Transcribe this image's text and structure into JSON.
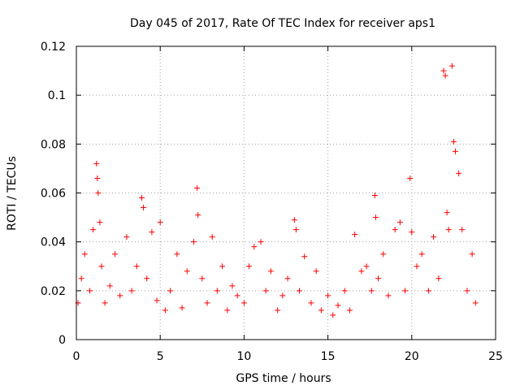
{
  "chart_data": {
    "type": "scatter",
    "title": "Day 045 of 2017, Rate Of TEC Index for receiver aps1",
    "xlabel": "GPS time / hours",
    "ylabel": "ROTI / TECUs",
    "xlim": [
      0,
      25
    ],
    "ylim": [
      0,
      0.12
    ],
    "x_ticks": [
      0,
      5,
      10,
      15,
      20,
      25
    ],
    "x_tick_labels": [
      "0",
      "5",
      "10",
      "15",
      "20",
      "25"
    ],
    "y_ticks": [
      0,
      0.02,
      0.04,
      0.06,
      0.08,
      0.1,
      0.12
    ],
    "y_tick_labels": [
      "0",
      "0.02",
      "0.04",
      "0.06",
      "0.08",
      "0.1",
      "0.12"
    ],
    "grid": true,
    "marker": "plus",
    "color": "#ff0000",
    "series": [
      {
        "name": "ROTI",
        "x": [
          0.1,
          0.3,
          0.5,
          0.8,
          1.0,
          1.2,
          1.25,
          1.3,
          1.4,
          1.5,
          1.7,
          2.0,
          2.3,
          2.6,
          3.0,
          3.3,
          3.6,
          3.9,
          4.0,
          4.2,
          4.5,
          4.8,
          5.0,
          5.3,
          5.6,
          6.0,
          6.3,
          6.6,
          7.0,
          7.2,
          7.25,
          7.5,
          7.8,
          8.1,
          8.4,
          8.7,
          9.0,
          9.3,
          9.6,
          10.0,
          10.3,
          10.6,
          11.0,
          11.3,
          11.6,
          12.0,
          12.3,
          12.6,
          13.0,
          13.1,
          13.3,
          13.6,
          14.0,
          14.3,
          14.6,
          15.0,
          15.3,
          15.6,
          16.0,
          16.3,
          16.6,
          17.0,
          17.3,
          17.6,
          17.8,
          17.85,
          18.0,
          18.3,
          18.6,
          19.0,
          19.3,
          19.6,
          19.9,
          20.0,
          20.3,
          20.6,
          21.0,
          21.3,
          21.6,
          21.9,
          22.0,
          22.1,
          22.2,
          22.4,
          22.5,
          22.6,
          22.8,
          23.0,
          23.3,
          23.6,
          23.8
        ],
        "y": [
          0.015,
          0.025,
          0.035,
          0.02,
          0.045,
          0.072,
          0.066,
          0.06,
          0.048,
          0.03,
          0.015,
          0.022,
          0.035,
          0.018,
          0.042,
          0.02,
          0.03,
          0.058,
          0.054,
          0.025,
          0.044,
          0.016,
          0.048,
          0.012,
          0.02,
          0.035,
          0.013,
          0.028,
          0.04,
          0.062,
          0.051,
          0.025,
          0.015,
          0.042,
          0.02,
          0.03,
          0.012,
          0.022,
          0.018,
          0.015,
          0.03,
          0.038,
          0.04,
          0.02,
          0.028,
          0.012,
          0.018,
          0.025,
          0.049,
          0.045,
          0.02,
          0.034,
          0.015,
          0.028,
          0.012,
          0.018,
          0.01,
          0.014,
          0.02,
          0.012,
          0.043,
          0.028,
          0.03,
          0.02,
          0.059,
          0.05,
          0.025,
          0.035,
          0.018,
          0.045,
          0.048,
          0.02,
          0.066,
          0.044,
          0.03,
          0.035,
          0.02,
          0.042,
          0.025,
          0.11,
          0.108,
          0.052,
          0.045,
          0.112,
          0.081,
          0.077,
          0.068,
          0.045,
          0.02,
          0.035,
          0.015
        ]
      }
    ]
  }
}
